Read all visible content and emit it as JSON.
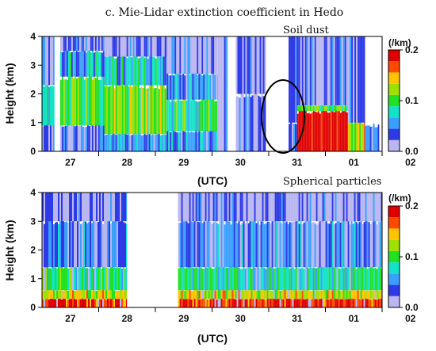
{
  "chart_data": [
    {
      "type": "heatmap",
      "title": "c. Mie-Lidar extinction coefficient in Hedo",
      "annotation": "Soil dust",
      "xlabel": "(UTC)",
      "ylabel": "Height (km)",
      "x_ticks": [
        "27",
        "28",
        "29",
        "30",
        "31",
        "01",
        "02"
      ],
      "xlim_days": [
        "26.5",
        "02.5"
      ],
      "ylim": [
        0,
        4
      ],
      "y_ticks": [
        "0",
        "1",
        "2",
        "3",
        "4"
      ],
      "colorbar": {
        "unit": "(/km)",
        "range": [
          0.0,
          0.2
        ],
        "ticks": [
          "0.2",
          "0.1",
          "0.0"
        ]
      },
      "highlight": {
        "shape": "ellipse",
        "x_center_day": 31.45,
        "y_center_km": 1.2,
        "label_ref": "Soil dust"
      },
      "colors": [
        "#b9b6f0",
        "#2e3ae6",
        "#3aa0ff",
        "#14e2c8",
        "#22e022",
        "#9ee000",
        "#ffc400",
        "#ff4a00",
        "#e00000"
      ],
      "layers": [
        {
          "start": 26.5,
          "end": 26.72,
          "base": 0,
          "top": 0.9,
          "value": 0.03
        },
        {
          "start": 26.5,
          "end": 26.72,
          "base": 0.9,
          "top": 2.3,
          "value": 0.09
        },
        {
          "start": 26.5,
          "end": 26.72,
          "base": 2.3,
          "top": 4.0,
          "value": 0.03
        },
        {
          "start": 26.72,
          "end": 26.82,
          "base": 0,
          "top": 4.0,
          "value": null
        },
        {
          "start": 26.82,
          "end": 27.6,
          "base": 0,
          "top": 0.9,
          "value": 0.03
        },
        {
          "start": 26.82,
          "end": 27.6,
          "base": 0.9,
          "top": 2.6,
          "value": 0.1
        },
        {
          "start": 26.82,
          "end": 27.6,
          "base": 2.6,
          "top": 3.5,
          "value": 0.06
        },
        {
          "start": 26.82,
          "end": 27.6,
          "base": 3.5,
          "top": 4.0,
          "value": 0.02
        },
        {
          "start": 27.6,
          "end": 28.7,
          "base": 0,
          "top": 0.6,
          "value": 0.05
        },
        {
          "start": 27.6,
          "end": 28.7,
          "base": 0.6,
          "top": 2.3,
          "value": 0.11
        },
        {
          "start": 27.6,
          "end": 28.7,
          "base": 2.3,
          "top": 3.3,
          "value": 0.07
        },
        {
          "start": 27.6,
          "end": 28.7,
          "base": 3.3,
          "top": 4.0,
          "value": 0.02
        },
        {
          "start": 28.7,
          "end": 29.6,
          "base": 0,
          "top": 0.7,
          "value": 0.05
        },
        {
          "start": 28.7,
          "end": 29.6,
          "base": 0.7,
          "top": 1.8,
          "value": 0.09
        },
        {
          "start": 28.7,
          "end": 29.6,
          "base": 1.8,
          "top": 2.7,
          "value": 0.05
        },
        {
          "start": 28.7,
          "end": 29.6,
          "base": 2.7,
          "top": 4.0,
          "value": 0.02
        },
        {
          "start": 29.6,
          "end": 29.78,
          "base": 0,
          "top": 4.0,
          "value": 0.02
        },
        {
          "start": 29.78,
          "end": 29.92,
          "base": 0,
          "top": 4.0,
          "value": null
        },
        {
          "start": 29.92,
          "end": 30.45,
          "base": 0,
          "top": 2.0,
          "value": 0.03
        },
        {
          "start": 29.92,
          "end": 30.45,
          "base": 2.0,
          "top": 4.0,
          "value": 0.02
        },
        {
          "start": 30.45,
          "end": 30.85,
          "base": 0,
          "top": 4.0,
          "value": null
        },
        {
          "start": 30.85,
          "end": 31.0,
          "base": 0,
          "top": 1.0,
          "value": 0.03
        },
        {
          "start": 30.85,
          "end": 31.0,
          "base": 1.0,
          "top": 4.0,
          "value": 0.02
        },
        {
          "start": 31.0,
          "end": 31.9,
          "base": 0,
          "top": 1.4,
          "value": 0.2
        },
        {
          "start": 31.0,
          "end": 31.9,
          "base": 1.4,
          "top": 1.6,
          "value": 0.1
        },
        {
          "start": 31.0,
          "end": 31.9,
          "base": 1.6,
          "top": 4.0,
          "value": 0.03
        },
        {
          "start": 31.9,
          "end": 32.2,
          "base": 0,
          "top": 1.0,
          "value": 0.13
        },
        {
          "start": 31.9,
          "end": 32.2,
          "base": 1.0,
          "top": 4.0,
          "value": 0.02
        },
        {
          "start": 32.2,
          "end": 32.45,
          "base": 0,
          "top": 0.9,
          "value": 0.04
        },
        {
          "start": 32.45,
          "end": 33.5,
          "base": 0,
          "top": 4.0,
          "value": null
        }
      ]
    },
    {
      "type": "heatmap",
      "annotation": "Spherical particles",
      "xlabel": "(UTC)",
      "ylabel": "Height (km)",
      "x_ticks": [
        "27",
        "28",
        "29",
        "30",
        "31",
        "01",
        "02"
      ],
      "xlim_days": [
        "26.5",
        "02.5"
      ],
      "ylim": [
        0,
        4
      ],
      "y_ticks": [
        "0",
        "1",
        "2",
        "3",
        "4"
      ],
      "colorbar": {
        "unit": "(/km)",
        "range": [
          0.0,
          0.2
        ],
        "ticks": [
          "0.2",
          "0.1",
          "0.0"
        ]
      },
      "colors": [
        "#b9b6f0",
        "#2e3ae6",
        "#3aa0ff",
        "#14e2c8",
        "#22e022",
        "#9ee000",
        "#ffc400",
        "#ff4a00",
        "#e00000"
      ],
      "layers": [
        {
          "start": 26.5,
          "end": 28.0,
          "base": 0,
          "top": 0.3,
          "value": 0.18
        },
        {
          "start": 26.5,
          "end": 28.0,
          "base": 0.3,
          "top": 0.6,
          "value": 0.13
        },
        {
          "start": 26.5,
          "end": 28.0,
          "base": 0.6,
          "top": 1.4,
          "value": 0.09
        },
        {
          "start": 26.5,
          "end": 28.0,
          "base": 1.4,
          "top": 3.0,
          "value": 0.04
        },
        {
          "start": 26.5,
          "end": 28.0,
          "base": 3.0,
          "top": 4.0,
          "value": 0.02
        },
        {
          "start": 28.0,
          "end": 28.9,
          "base": 0,
          "top": 4.0,
          "value": null
        },
        {
          "start": 28.9,
          "end": 32.5,
          "base": 0,
          "top": 0.3,
          "value": 0.18
        },
        {
          "start": 28.9,
          "end": 32.5,
          "base": 0.3,
          "top": 0.6,
          "value": 0.13
        },
        {
          "start": 28.9,
          "end": 32.5,
          "base": 0.6,
          "top": 1.4,
          "value": 0.08
        },
        {
          "start": 28.9,
          "end": 32.5,
          "base": 1.4,
          "top": 3.0,
          "value": 0.04
        },
        {
          "start": 28.9,
          "end": 32.5,
          "base": 3.0,
          "top": 4.0,
          "value": 0.02
        }
      ]
    }
  ]
}
